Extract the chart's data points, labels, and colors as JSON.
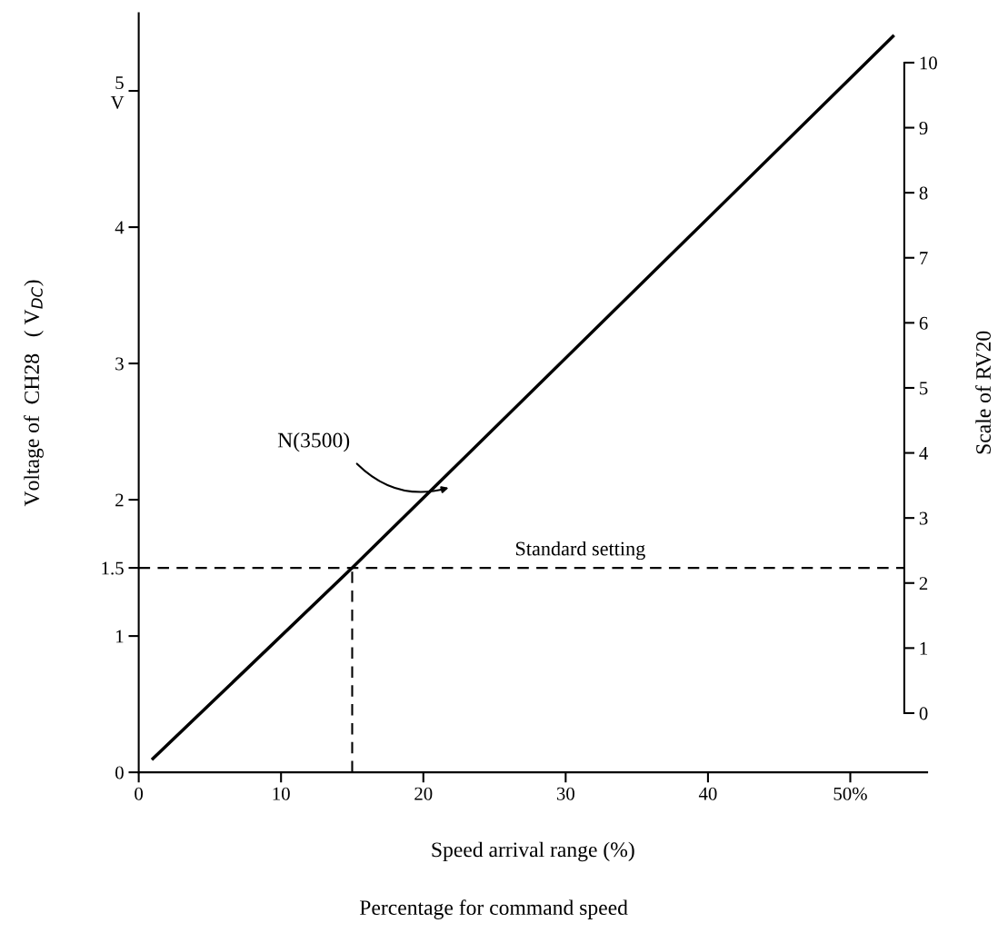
{
  "chart_data": {
    "type": "line",
    "xlabel": "Speed arrival range (%)",
    "ylabel": "Voltage of  CH28   ( V$_{DC}$)",
    "y2label": "Scale of RV20",
    "x": [
      1,
      15,
      53
    ],
    "series": [
      {
        "color": "#000000",
        "values": [
          0.1,
          1.5,
          5.4
        ]
      }
    ],
    "xlim": [
      0,
      55.4
    ],
    "xticks": [
      0,
      10,
      20,
      30,
      40,
      {
        "value": 50,
        "label": "50%"
      }
    ],
    "ylim": [
      0,
      5.57
    ],
    "yticks": [
      0,
      1,
      1.5,
      2,
      3,
      4,
      {
        "value": 5,
        "label": "5\nV"
      }
    ],
    "y2lim": [
      -0.91,
      10.76
    ],
    "y2ticks": [
      0,
      1,
      2,
      3,
      4,
      5,
      6,
      7,
      8,
      9,
      10
    ],
    "ref_lines": [
      {
        "axis": "y",
        "value": 1.5,
        "label": "Standard setting",
        "line_style": "dashed",
        "color": "#000000"
      },
      {
        "axis": "x",
        "value": 15,
        "label": null,
        "line_style": "dashed",
        "color": "#000000"
      }
    ],
    "annotations": [
      "N(3500)",
      "Percentage for command speed"
    ],
    "grid": false,
    "legend": false,
    "marker": "none",
    "line_style": "solid"
  }
}
